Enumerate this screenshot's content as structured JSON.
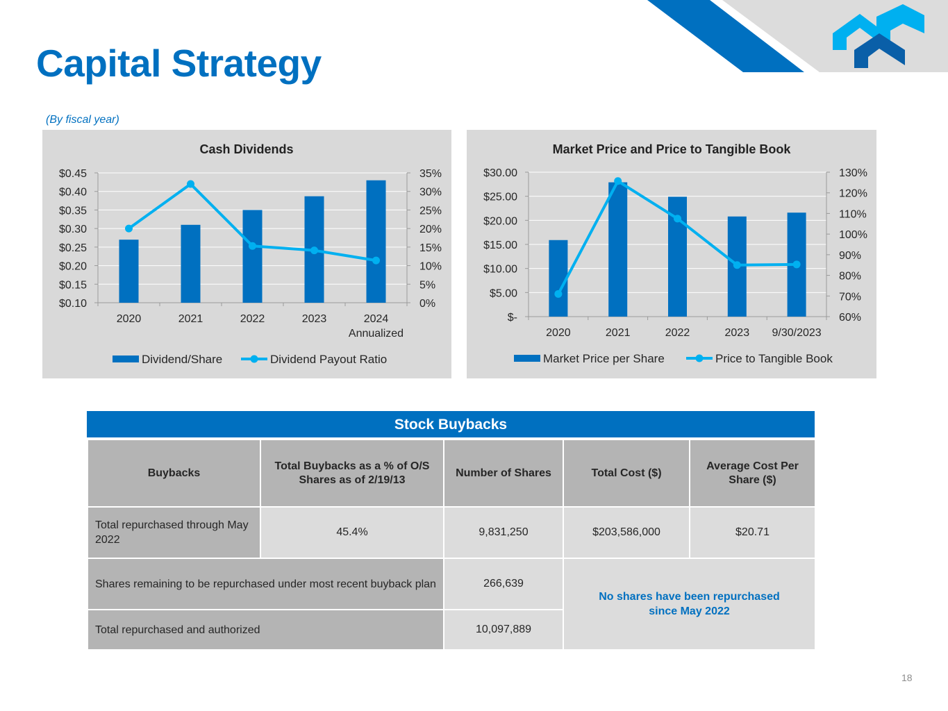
{
  "slide": {
    "title": "Capital Strategy",
    "subtitle": "(By fiscal year)",
    "page_number": "18"
  },
  "colors": {
    "brand_blue": "#0070c0",
    "light_blue": "#00b0f0",
    "panel_gray": "#d9d9d9",
    "header_gray": "#b4b4b4",
    "cell_gray": "#dcdcdc"
  },
  "chart_data": [
    {
      "type": "bar",
      "title": "Cash Dividends",
      "categories": [
        "2020",
        "2021",
        "2022",
        "2023",
        "2024 Annualized"
      ],
      "category_lines": [
        [
          "2020"
        ],
        [
          "2021"
        ],
        [
          "2022"
        ],
        [
          "2023"
        ],
        [
          "2024",
          "Annualized"
        ]
      ],
      "ylim": [
        0.1,
        0.45
      ],
      "yticks": [
        0.1,
        0.15,
        0.2,
        0.25,
        0.3,
        0.35,
        0.4,
        0.45
      ],
      "ytick_labels": [
        "$0.10",
        "$0.15",
        "$0.20",
        "$0.25",
        "$0.30",
        "$0.35",
        "$0.40",
        "$0.45"
      ],
      "y2lim": [
        0,
        35
      ],
      "y2ticks": [
        0,
        5,
        10,
        15,
        20,
        25,
        30,
        35
      ],
      "y2tick_labels": [
        "0%",
        "5%",
        "10%",
        "15%",
        "20%",
        "25%",
        "30%",
        "35%"
      ],
      "grid": true,
      "legend_position": "bottom",
      "series": [
        {
          "name": "Dividend/Share",
          "type": "bar",
          "axis": "left",
          "values": [
            0.27,
            0.31,
            0.35,
            0.387,
            0.43
          ]
        },
        {
          "name": "Dividend Payout Ratio",
          "type": "line",
          "axis": "right",
          "values": [
            20.0,
            32.0,
            15.3,
            14.1,
            11.4
          ]
        }
      ]
    },
    {
      "type": "bar",
      "title": "Market Price and Price to Tangible Book",
      "categories": [
        "2020",
        "2021",
        "2022",
        "2023",
        "9/30/2023"
      ],
      "category_lines": [
        [
          "2020"
        ],
        [
          "2021"
        ],
        [
          "2022"
        ],
        [
          "2023"
        ],
        [
          "9/30/2023"
        ]
      ],
      "ylim": [
        0,
        30
      ],
      "yticks": [
        0,
        5,
        10,
        15,
        20,
        25,
        30
      ],
      "ytick_labels": [
        "$-",
        "$5.00",
        "$10.00",
        "$15.00",
        "$20.00",
        "$25.00",
        "$30.00"
      ],
      "y2lim": [
        60,
        130
      ],
      "y2ticks": [
        60,
        70,
        80,
        90,
        100,
        110,
        120,
        130
      ],
      "y2tick_labels": [
        "60%",
        "70%",
        "80%",
        "90%",
        "100%",
        "110%",
        "120%",
        "130%"
      ],
      "grid": true,
      "legend_position": "bottom",
      "series": [
        {
          "name": "Market Price per Share",
          "type": "bar",
          "axis": "left",
          "values": [
            15.9,
            27.9,
            24.9,
            20.8,
            21.6
          ]
        },
        {
          "name": "Price to Tangible Book",
          "type": "line",
          "axis": "right",
          "values": [
            71.0,
            125.7,
            107.5,
            85.0,
            85.3
          ]
        }
      ]
    }
  ],
  "buybacks": {
    "title": "Stock Buybacks",
    "headers": [
      "Buybacks",
      "Total Buybacks as a % of O/S Shares as of 2/19/13",
      "Number of Shares",
      "Total Cost ($)",
      "Average Cost Per Share ($)"
    ],
    "row1": {
      "label": "Total repurchased through May 2022",
      "pct": "45.4%",
      "shares": "9,831,250",
      "cost": "$203,586,000",
      "avg": "$20.71"
    },
    "row2": {
      "label": "Shares remaining to be repurchased under most recent buyback plan",
      "shares": "266,639"
    },
    "row3": {
      "label": "Total repurchased and authorized",
      "shares": "10,097,889"
    },
    "note": "No shares have been repurchased since May 2022"
  }
}
